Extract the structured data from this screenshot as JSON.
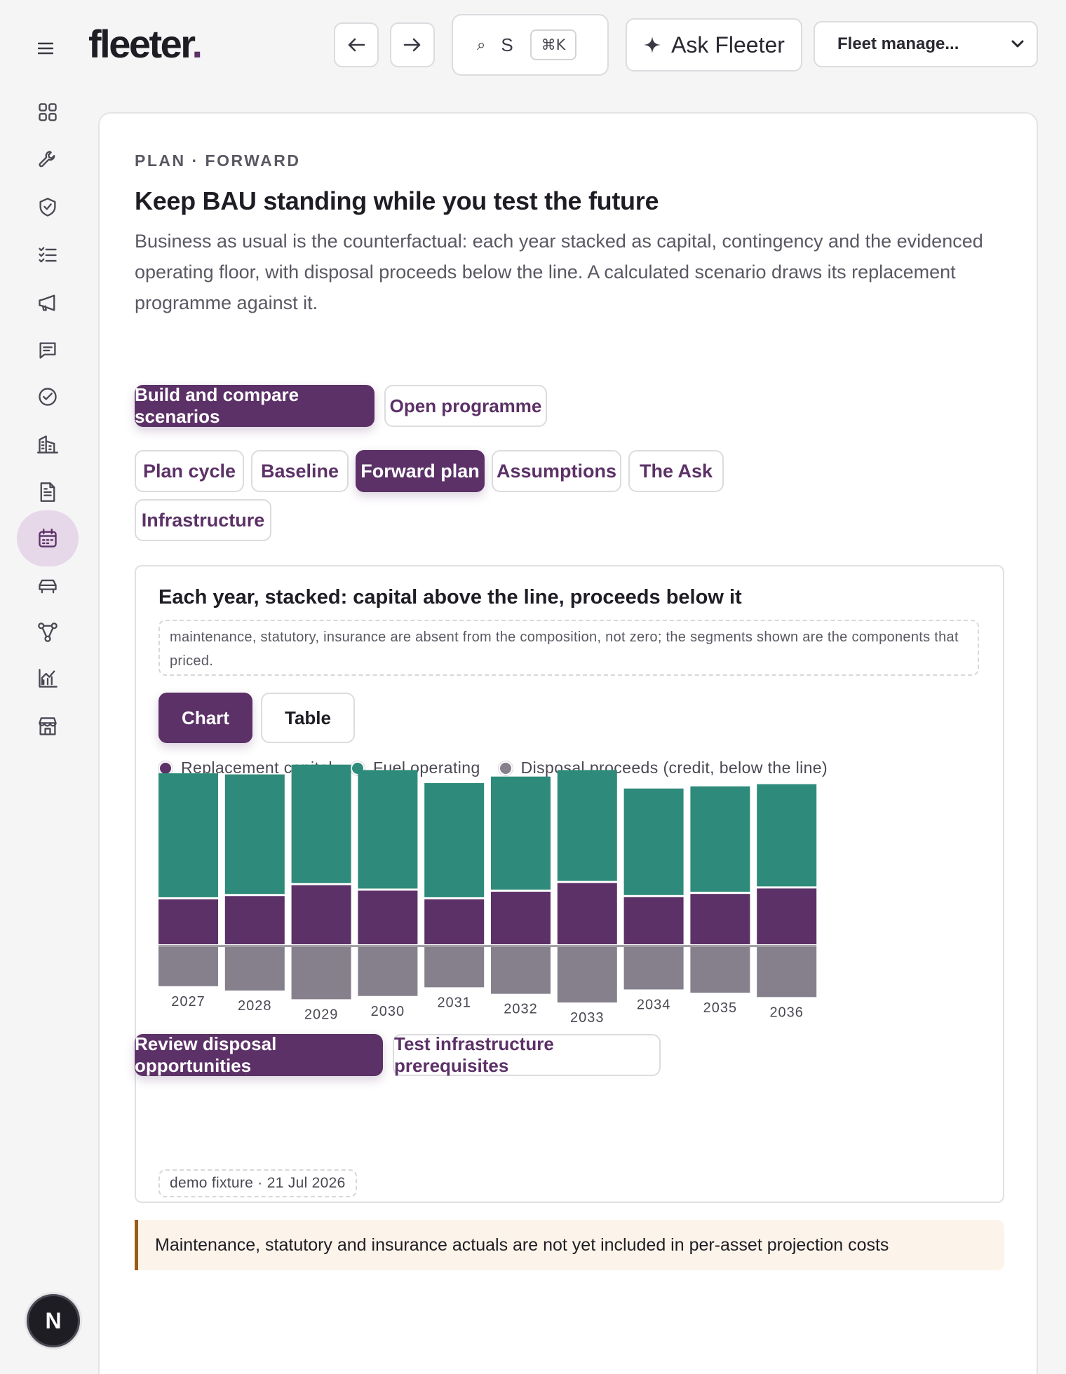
{
  "header": {
    "logo_text": "fleeter",
    "logo_dot": ".",
    "search_glyph": "⌕",
    "search_text": "S",
    "search_shortcut": "⌘K",
    "ask_label": "Ask Fleeter",
    "ask_icon": "sparkle-icon",
    "org_select_value": "Fleet manage..."
  },
  "sidebar": {
    "items": [
      {
        "icon": "dashboard-grid-icon",
        "active": false
      },
      {
        "icon": "wrench-icon",
        "active": false
      },
      {
        "icon": "shield-check-icon",
        "active": false
      },
      {
        "icon": "checklist-icon",
        "active": false
      },
      {
        "icon": "megaphone-icon",
        "active": false
      },
      {
        "icon": "message-icon",
        "active": false
      },
      {
        "icon": "check-circle-icon",
        "active": false
      },
      {
        "icon": "building-icon",
        "active": false
      },
      {
        "icon": "document-icon",
        "active": false
      },
      {
        "icon": "calendar-icon",
        "active": true
      },
      {
        "icon": "car-icon",
        "active": false
      },
      {
        "icon": "network-icon",
        "active": false
      },
      {
        "icon": "chart-icon",
        "active": false
      },
      {
        "icon": "store-icon",
        "active": false
      }
    ],
    "avatar_initial": "N"
  },
  "page": {
    "eyebrow": "PLAN · FORWARD",
    "title": "Keep BAU standing while you test the future",
    "description": "Business as usual is the counterfactual: each year stacked as capital, contingency and the evidenced operating floor, with disposal proceeds below the line. A calculated scenario draws its replacement programme against it.",
    "primary_action": "Build and compare scenarios",
    "secondary_action": "Open programme",
    "tabs": [
      "Plan cycle",
      "Baseline",
      "Forward plan",
      "Assumptions",
      "The Ask",
      "Infrastructure"
    ],
    "active_tab": "Forward plan"
  },
  "panel": {
    "title": "Each year, stacked: capital above the line, proceeds below it",
    "note": "maintenance, statutory, insurance are absent from the composition, not zero; the segments shown are the components that priced.",
    "view_chart": "Chart",
    "view_table": "Table",
    "fixture": "demo fixture · 21 Jul 2026"
  },
  "colors": {
    "replacement_capital": "#5c3167",
    "fuel_operating": "#2e8a7a",
    "disposal_proceeds": "#85808c"
  },
  "chart_data": {
    "type": "bar",
    "stacked": true,
    "categories": [
      "2027",
      "2028",
      "2029",
      "2030",
      "2031",
      "2032",
      "2033",
      "2034",
      "2035",
      "2036"
    ],
    "series": [
      {
        "name": "Replacement capital",
        "values": [
          4.2,
          4.5,
          5.5,
          5.0,
          4.2,
          4.9,
          5.7,
          4.4,
          4.7,
          5.2
        ]
      },
      {
        "name": "Fuel operating",
        "values": [
          11.6,
          11.2,
          11.1,
          11.1,
          10.7,
          10.6,
          10.4,
          10.0,
          9.9,
          9.6
        ]
      },
      {
        "name": "Disposal proceeds (credit, below the line)",
        "values": [
          -3.6,
          -4.0,
          -4.8,
          -4.5,
          -3.7,
          -4.3,
          -5.1,
          -3.9,
          -4.2,
          -4.6
        ]
      }
    ],
    "legend_position": "top-left",
    "grid": false
  },
  "callout": "Maintenance, statutory and insurance actuals are not yet included in per-asset projection costs",
  "footer_actions": {
    "primary": "Review disposal opportunities",
    "secondary": "Test infrastructure prerequisites"
  }
}
